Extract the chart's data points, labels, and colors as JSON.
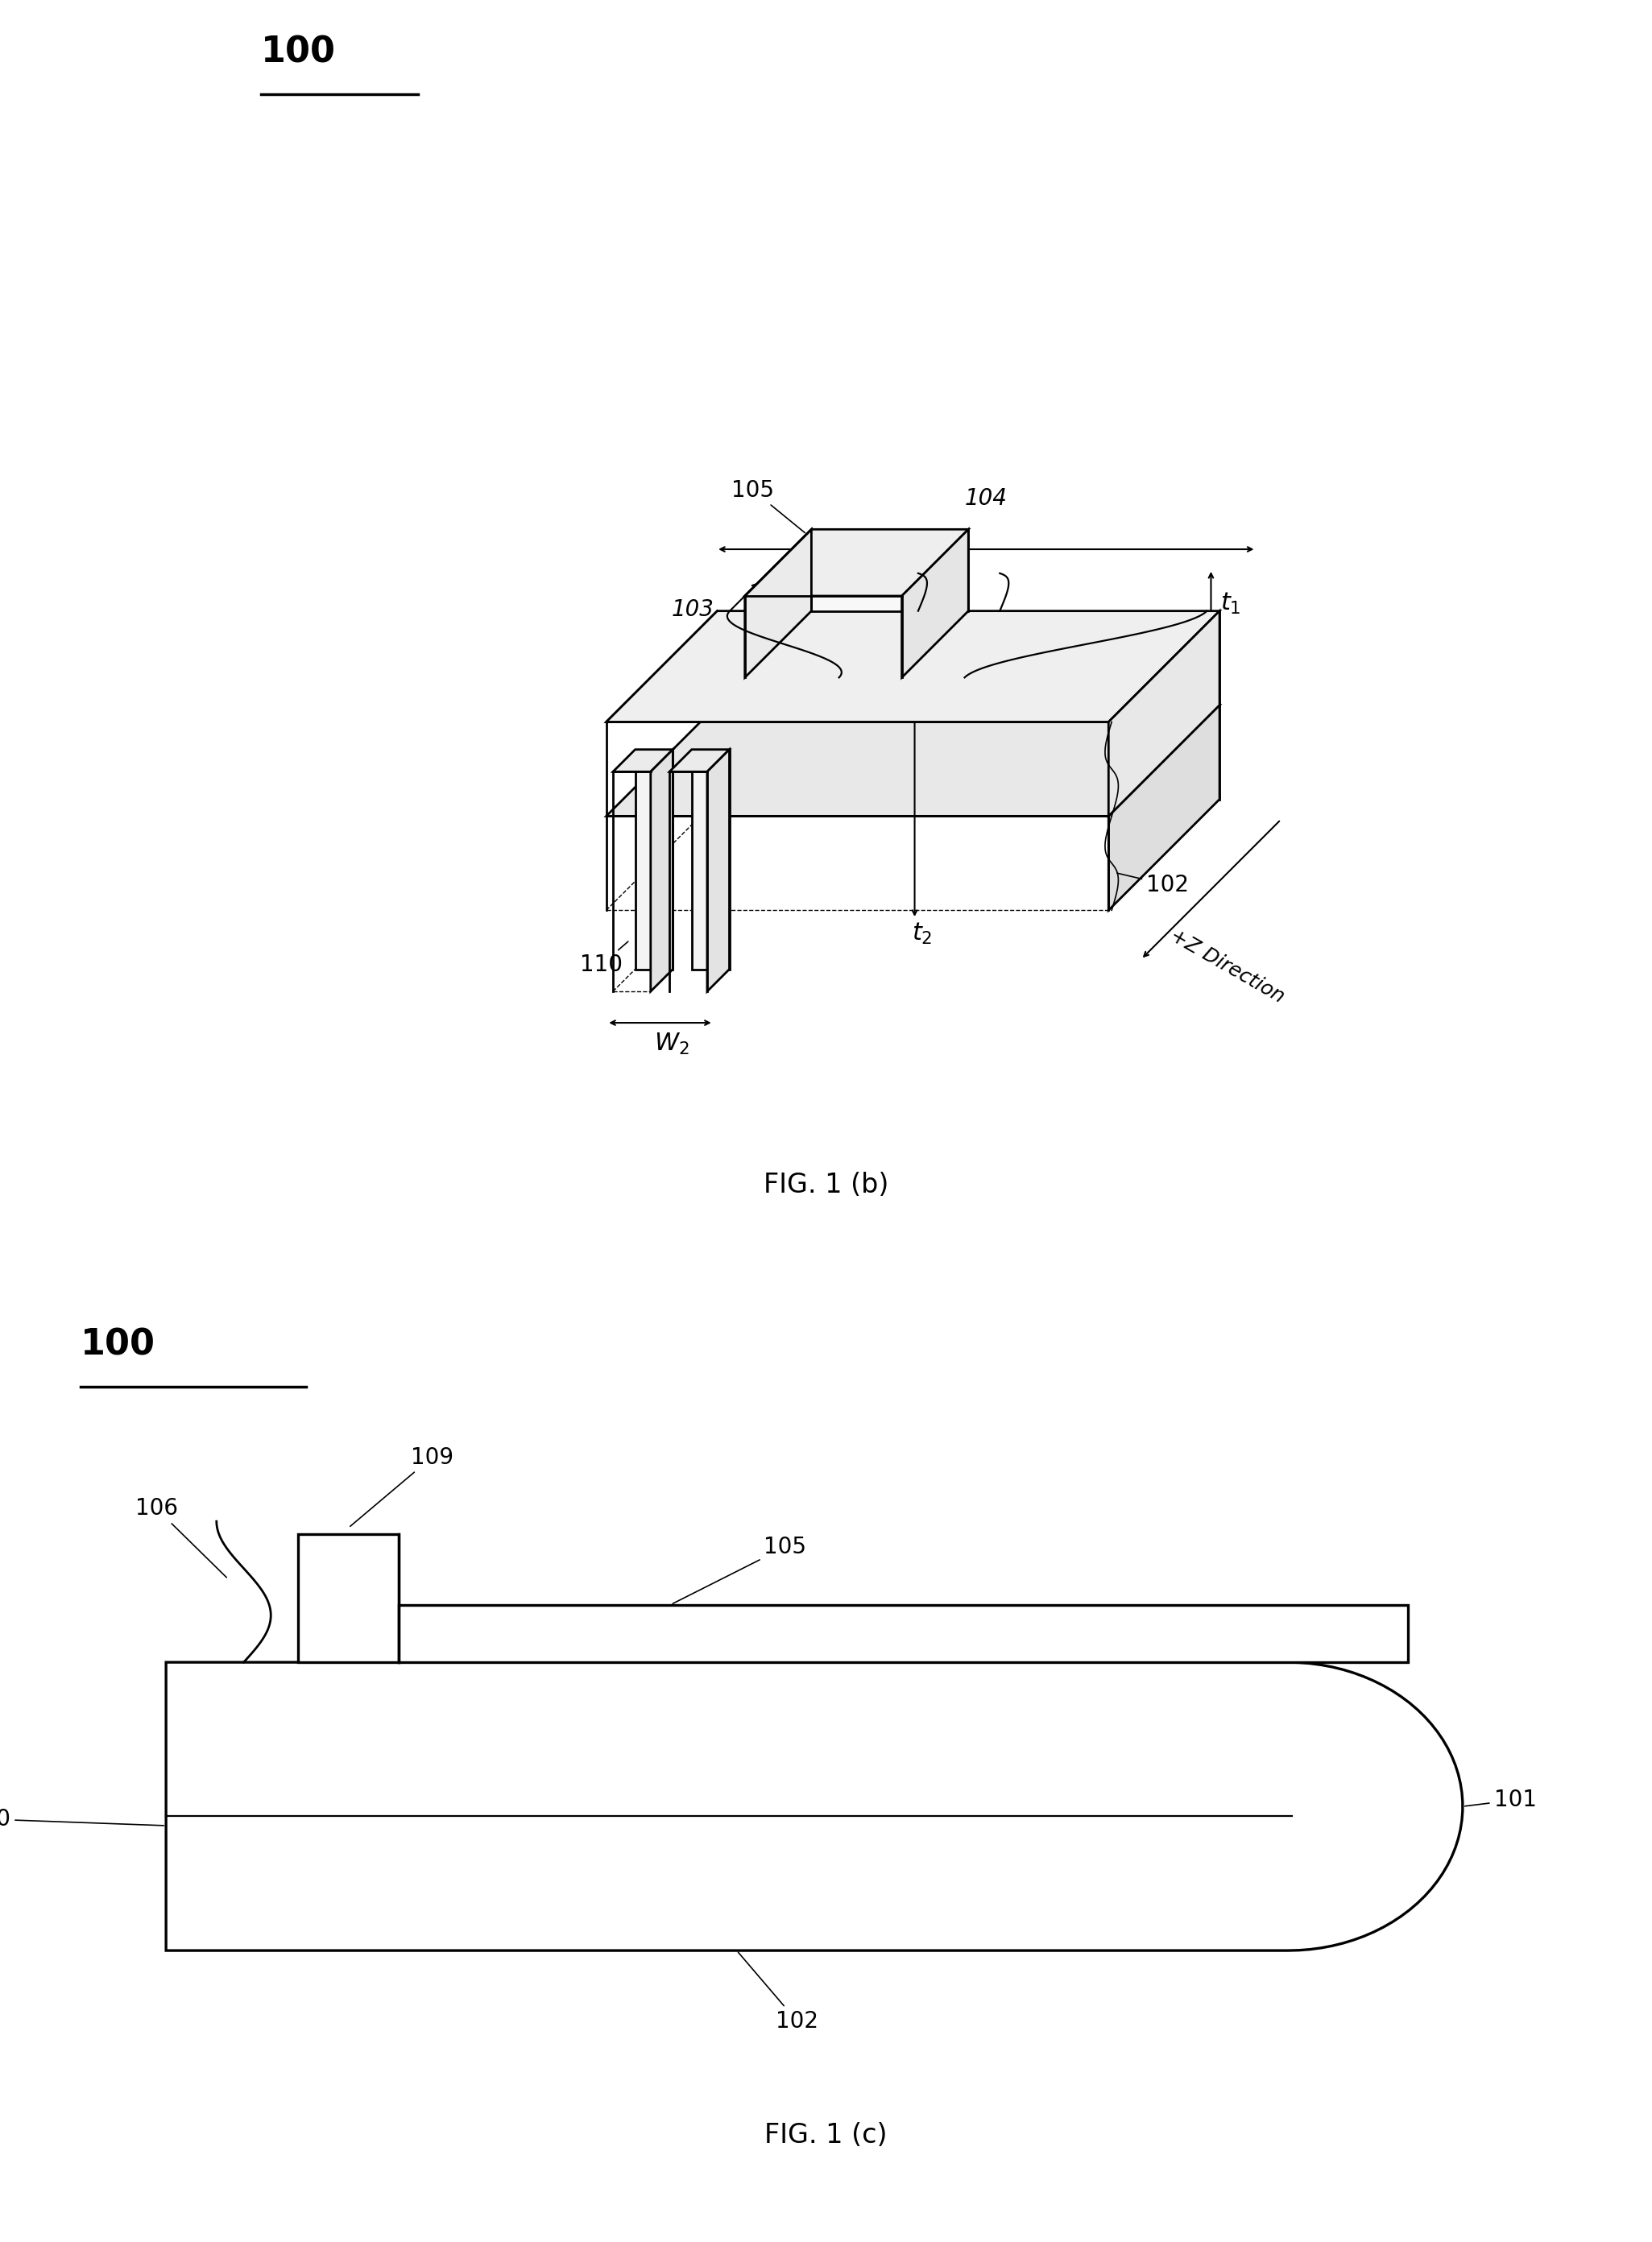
{
  "bg_color": "#ffffff",
  "line_color": "#000000",
  "lw_main": 2.0,
  "lw_thin": 1.2,
  "lw_dim": 1.5,
  "fs_label": 20,
  "fs_title": 24,
  "fs_100": 32,
  "fig_b_title": "FIG. 1 (b)",
  "fig_c_title": "FIG. 1 (c)"
}
